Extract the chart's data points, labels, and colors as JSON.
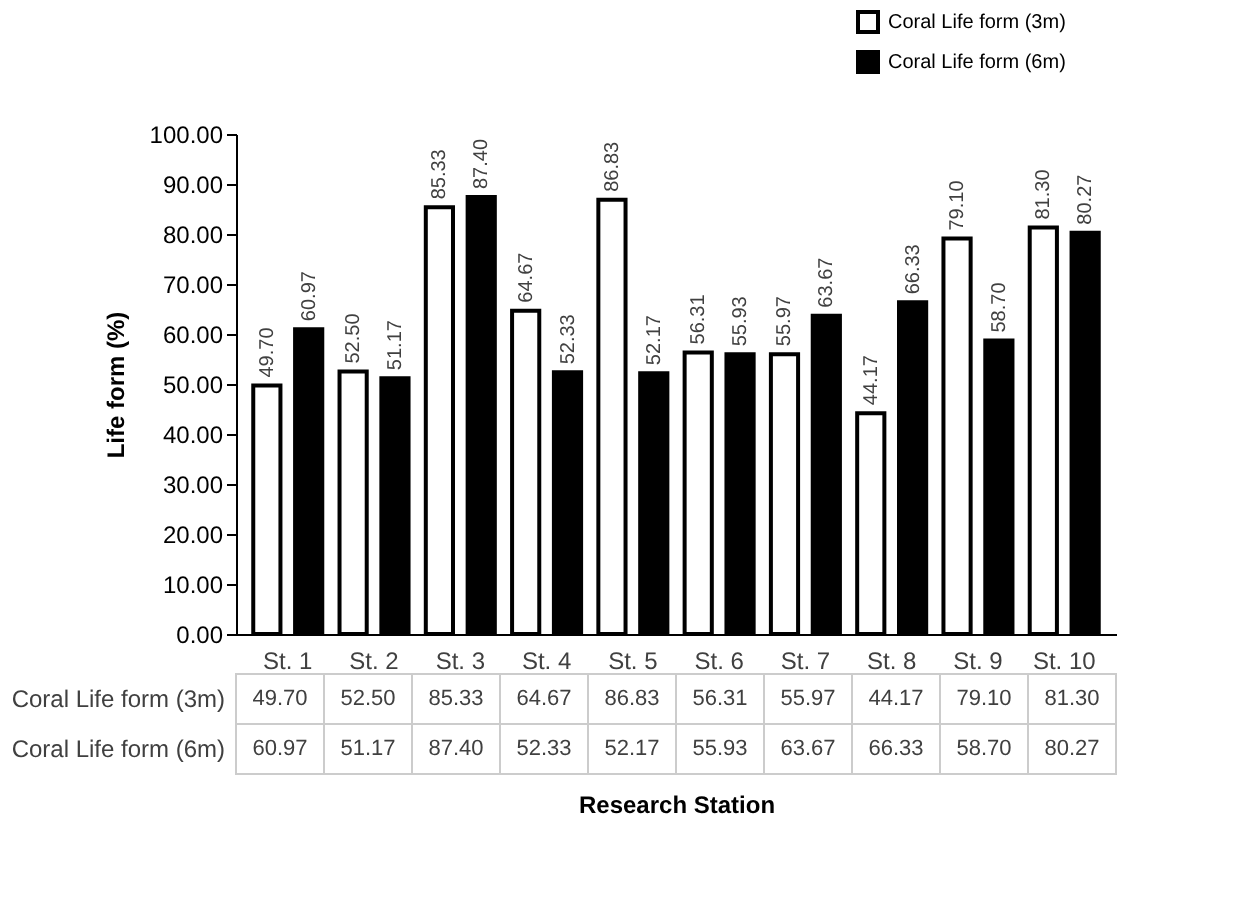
{
  "chart_data": {
    "type": "bar",
    "ylabel": "Life form (%)",
    "xlabel": "Research Station",
    "categories": [
      "St. 1",
      "St. 2",
      "St. 3",
      "St. 4",
      "St. 5",
      "St. 6",
      "St. 7",
      "St. 8",
      "St. 9",
      "St. 10"
    ],
    "series": [
      {
        "name": "Coral Life form (3m)",
        "color": "#ffffff",
        "values": [
          49.7,
          52.5,
          85.33,
          64.67,
          86.83,
          56.31,
          55.97,
          44.17,
          79.1,
          81.3
        ],
        "value_labels": [
          "49.70",
          "52.50",
          "85.33",
          "64.67",
          "86.83",
          "56.31",
          "55.97",
          "44.17",
          "79.10",
          "81.30"
        ]
      },
      {
        "name": "Coral Life form (6m)",
        "color": "#000000",
        "values": [
          60.97,
          51.17,
          87.4,
          52.33,
          52.17,
          55.93,
          63.67,
          66.33,
          58.7,
          80.27
        ],
        "value_labels": [
          "60.97",
          "51.17",
          "87.40",
          "52.33",
          "52.17",
          "55.93",
          "63.67",
          "66.33",
          "58.70",
          "80.27"
        ]
      }
    ],
    "ylim": [
      0,
      100
    ],
    "yticks": [
      {
        "value": 0,
        "label": "0.00"
      },
      {
        "value": 10,
        "label": "10.00"
      },
      {
        "value": 20,
        "label": "20.00"
      },
      {
        "value": 30,
        "label": "30.00"
      },
      {
        "value": 40,
        "label": "40.00"
      },
      {
        "value": 50,
        "label": "50.00"
      },
      {
        "value": 60,
        "label": "60.00"
      },
      {
        "value": 70,
        "label": "70.00"
      },
      {
        "value": 80,
        "label": "80.00"
      },
      {
        "value": 90,
        "label": "90.00"
      },
      {
        "value": 100,
        "label": "100.00"
      }
    ],
    "grid": false,
    "legend": "top right"
  }
}
